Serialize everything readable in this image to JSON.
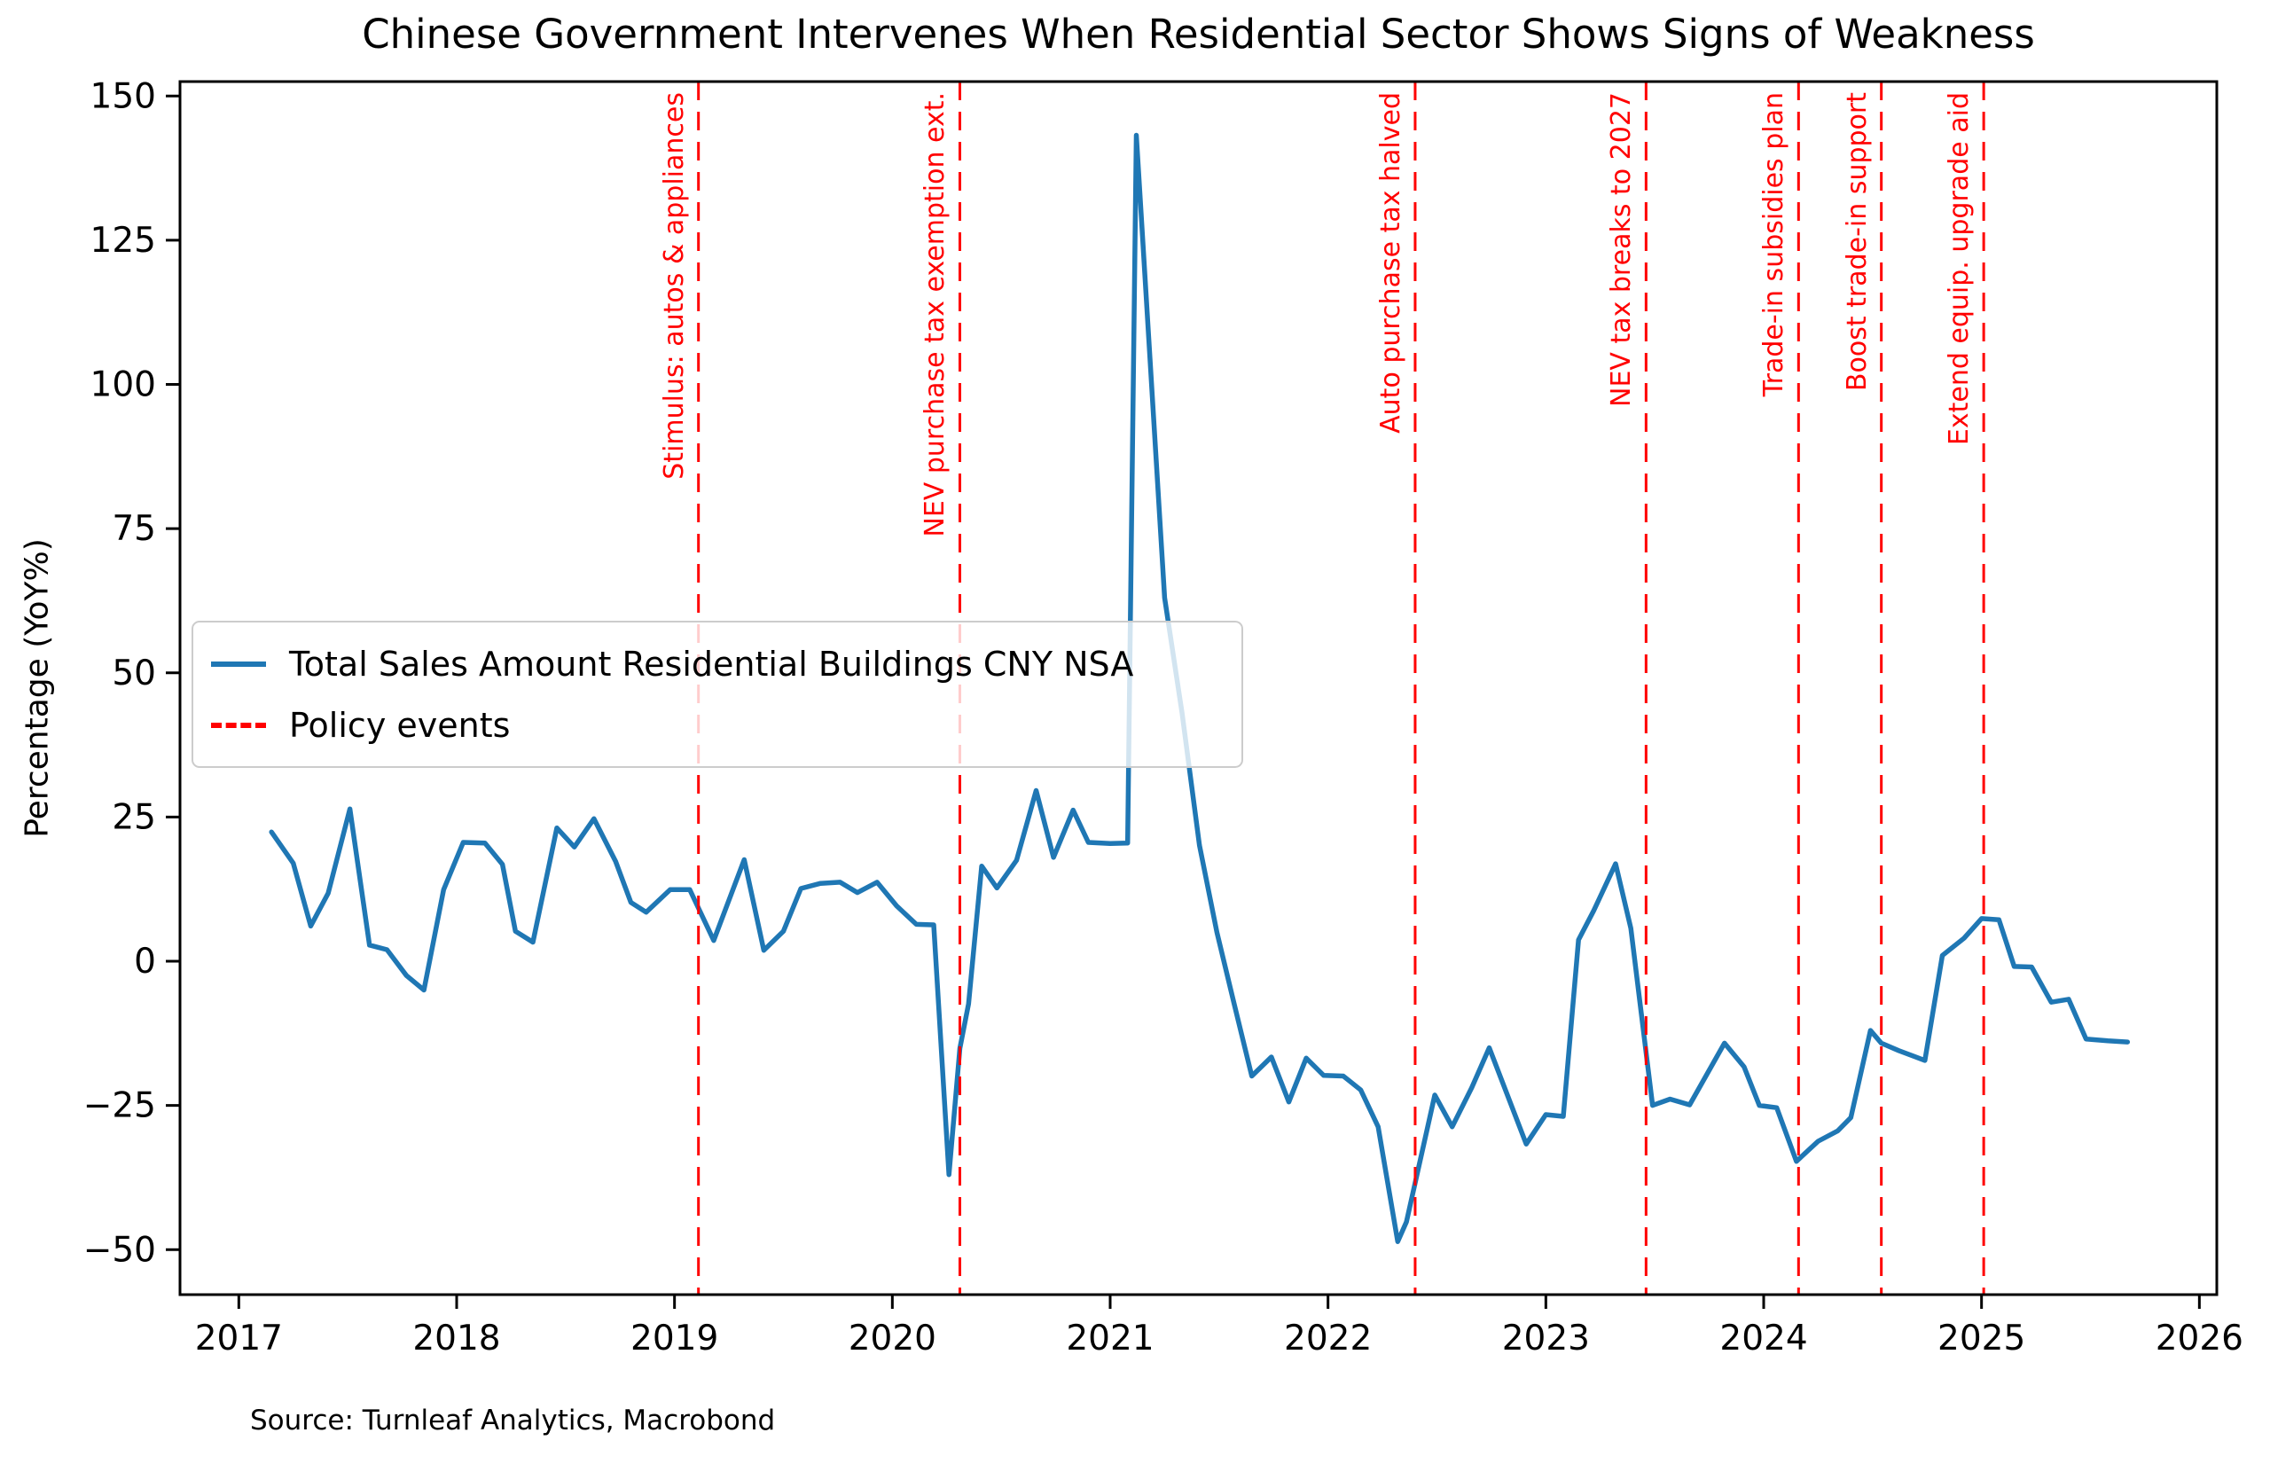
{
  "figure": {
    "title": "Chinese Government Intervenes When Residential Sector Shows Signs of Weakness",
    "source": "Source: Turnleaf Analytics, Macrobond"
  },
  "legend": {
    "series_label": "Total Sales Amount Residential Buildings CNY NSA",
    "events_label": "Policy events"
  },
  "chart_data": {
    "type": "line",
    "title": "Chinese Government Intervenes When Residential Sector Shows Signs of Weakness",
    "xlabel": "",
    "ylabel": "Percentage (YoY%)",
    "xlim": [
      2016.73,
      2026.08
    ],
    "ylim": [
      -57.8,
      152.5
    ],
    "x_ticks": [
      2017,
      2018,
      2019,
      2020,
      2021,
      2022,
      2023,
      2024,
      2025,
      2026
    ],
    "y_ticks": [
      -50,
      -25,
      0,
      25,
      50,
      75,
      100,
      125,
      150
    ],
    "grid": false,
    "legend_position": "upper-left",
    "colors": {
      "series": "#1f77b4",
      "events": "#ff0000",
      "axes": "#000000"
    },
    "series": [
      {
        "name": "Total Sales Amount Residential Buildings CNY NSA",
        "style": "solid",
        "points": [
          [
            2017.15,
            22.4
          ],
          [
            2017.25,
            17.0
          ],
          [
            2017.33,
            6.1
          ],
          [
            2017.41,
            11.8
          ],
          [
            2017.51,
            26.4
          ],
          [
            2017.6,
            2.8
          ],
          [
            2017.68,
            2.0
          ],
          [
            2017.77,
            -2.5
          ],
          [
            2017.85,
            -5.0
          ],
          [
            2017.94,
            12.4
          ],
          [
            2018.03,
            20.6
          ],
          [
            2018.13,
            20.5
          ],
          [
            2018.21,
            16.8
          ],
          [
            2018.27,
            5.2
          ],
          [
            2018.35,
            3.3
          ],
          [
            2018.46,
            23.1
          ],
          [
            2018.54,
            19.8
          ],
          [
            2018.63,
            24.7
          ],
          [
            2018.73,
            17.3
          ],
          [
            2018.8,
            10.2
          ],
          [
            2018.87,
            8.5
          ],
          [
            2018.98,
            12.4
          ],
          [
            2019.07,
            12.4
          ],
          [
            2019.18,
            3.6
          ],
          [
            2019.32,
            17.6
          ],
          [
            2019.41,
            1.9
          ],
          [
            2019.5,
            5.2
          ],
          [
            2019.58,
            12.6
          ],
          [
            2019.67,
            13.5
          ],
          [
            2019.76,
            13.7
          ],
          [
            2019.84,
            11.9
          ],
          [
            2019.93,
            13.7
          ],
          [
            2020.02,
            9.6
          ],
          [
            2020.11,
            6.4
          ],
          [
            2020.19,
            6.3
          ],
          [
            2020.26,
            -37.0
          ],
          [
            2020.31,
            -15.1
          ],
          [
            2020.35,
            -7.4
          ],
          [
            2020.41,
            16.5
          ],
          [
            2020.48,
            12.7
          ],
          [
            2020.57,
            17.5
          ],
          [
            2020.66,
            29.6
          ],
          [
            2020.74,
            18.0
          ],
          [
            2020.83,
            26.2
          ],
          [
            2020.9,
            20.6
          ],
          [
            2021.0,
            20.4
          ],
          [
            2021.08,
            20.5
          ],
          [
            2021.12,
            143.2
          ],
          [
            2021.25,
            63.0
          ],
          [
            2021.33,
            43.0
          ],
          [
            2021.41,
            20.1
          ],
          [
            2021.49,
            5.0
          ],
          [
            2021.57,
            -7.5
          ],
          [
            2021.65,
            -19.9
          ],
          [
            2021.74,
            -16.6
          ],
          [
            2021.82,
            -24.4
          ],
          [
            2021.9,
            -16.8
          ],
          [
            2021.98,
            -19.8
          ],
          [
            2022.07,
            -19.9
          ],
          [
            2022.15,
            -22.3
          ],
          [
            2022.23,
            -28.7
          ],
          [
            2022.32,
            -48.6
          ],
          [
            2022.36,
            -45.2
          ],
          [
            2022.49,
            -23.2
          ],
          [
            2022.57,
            -28.7
          ],
          [
            2022.66,
            -21.9
          ],
          [
            2022.74,
            -15.0
          ],
          [
            2022.91,
            -31.7
          ],
          [
            2023.0,
            -26.6
          ],
          [
            2023.08,
            -26.9
          ],
          [
            2023.15,
            3.7
          ],
          [
            2023.22,
            8.8
          ],
          [
            2023.32,
            16.9
          ],
          [
            2023.39,
            5.7
          ],
          [
            2023.49,
            -25.0
          ],
          [
            2023.57,
            -23.9
          ],
          [
            2023.66,
            -24.9
          ],
          [
            2023.82,
            -14.2
          ],
          [
            2023.91,
            -18.3
          ],
          [
            2023.98,
            -25.0
          ],
          [
            2024.06,
            -25.4
          ],
          [
            2024.15,
            -34.7
          ],
          [
            2024.25,
            -31.2
          ],
          [
            2024.34,
            -29.4
          ],
          [
            2024.4,
            -27.1
          ],
          [
            2024.49,
            -12.0
          ],
          [
            2024.54,
            -14.2
          ],
          [
            2024.62,
            -15.5
          ],
          [
            2024.74,
            -17.2
          ],
          [
            2024.82,
            1.0
          ],
          [
            2024.92,
            4.0
          ],
          [
            2025.0,
            7.4
          ],
          [
            2025.08,
            7.2
          ],
          [
            2025.15,
            -0.9
          ],
          [
            2025.23,
            -1.0
          ],
          [
            2025.32,
            -7.1
          ],
          [
            2025.4,
            -6.6
          ],
          [
            2025.48,
            -13.5
          ],
          [
            2025.58,
            -13.8
          ],
          [
            2025.67,
            -14.0
          ]
        ]
      }
    ],
    "events": {
      "name": "Policy events",
      "style": "dashed",
      "items": [
        {
          "x": 2019.11,
          "label": "Stimulus: autos & appliances"
        },
        {
          "x": 2020.31,
          "label": "NEV purchase tax exemption ext."
        },
        {
          "x": 2022.4,
          "label": "Auto purchase tax halved"
        },
        {
          "x": 2023.46,
          "label": "NEV tax breaks to 2027"
        },
        {
          "x": 2024.16,
          "label": "Trade-in subsidies plan"
        },
        {
          "x": 2024.54,
          "label": "Boost trade-in support"
        },
        {
          "x": 2025.01,
          "label": "Extend equip. upgrade aid"
        }
      ]
    },
    "source": "Source: Turnleaf Analytics, Macrobond"
  }
}
